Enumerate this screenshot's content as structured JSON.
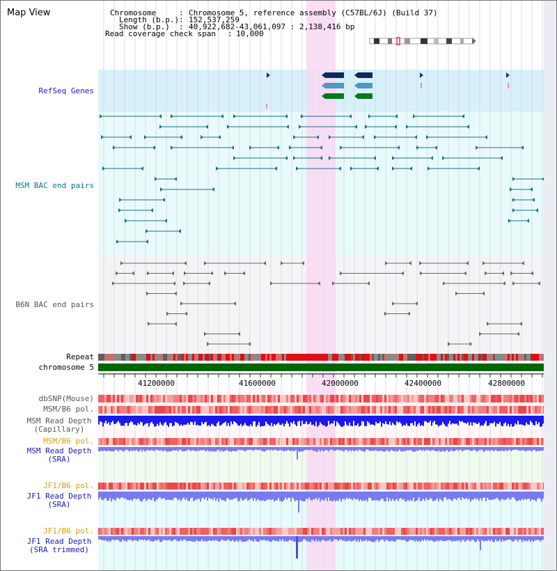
{
  "title": "Map View",
  "info": {
    "chromosome_label": "Chromosome",
    "chromosome_value": "Chromosome 5, reference assembly (C57BL/6J) (Build 37)",
    "length_label": "Length (b.p.)",
    "length_value": "152,537,259",
    "show_label": "Show (b.p.)",
    "show_value": "40,922,682-43,061,097 : 2,138,416 bp",
    "coverage_label": "Read coverage check span",
    "coverage_value": "10,000"
  },
  "tracks": {
    "refseq": "RefSeq Genes",
    "msm_bac": "MSM BAC end pairs",
    "b6n_bac": "B6N BAC end pairs",
    "repeat": "Repeat",
    "chromosome": "chromosome 5",
    "dbsnp": "dbSNP(Mouse)",
    "msm_b6_pol_1": "MSM/B6 pol.",
    "msm_depth_cap_1": "MSM Read Depth",
    "msm_depth_cap_2": "(Capillary)",
    "msm_b6_pol_2": "MSM/B6 pol.",
    "msm_depth_sra_1": "MSM Read Depth",
    "msm_depth_sra_2": "(SRA)",
    "jf1_pol_1": "JF1/B6 pol.",
    "jf1_depth_sra_1": "JF1 Read Depth",
    "jf1_depth_sra_2": "(SRA)",
    "jf1_pol_2": "JF1/B6 pol.",
    "jf1_depth_trim_1": "JF1 Read Depth",
    "jf1_depth_trim_2": "(SRA trimmed)"
  },
  "ruler": {
    "ticks": [
      "41200000",
      "41600000",
      "42000000",
      "42400000",
      "42800000"
    ]
  },
  "colors": {
    "refseq_bg": "#d8f0fa",
    "bac_bg": "#e8fafa",
    "highlight": "#f8d8f2",
    "msm_line": "#1a6e8c",
    "b6n_line": "#666666",
    "depth_dark": "#1a1aee",
    "depth_light": "#7a7af0",
    "chrom_green": "#006600"
  }
}
